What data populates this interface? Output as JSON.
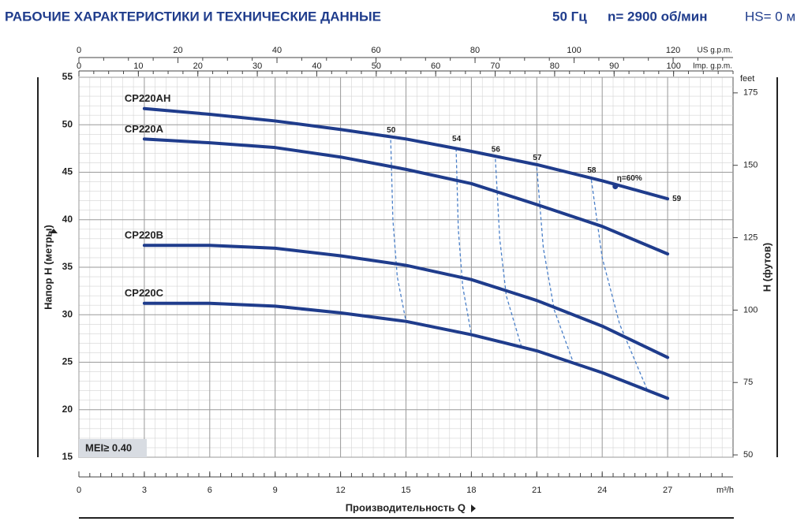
{
  "chart_data": {
    "type": "line",
    "title": "РАБОЧИЕ ХАРАКТЕРИСТИКИ И ТЕХНИЧЕСКИЕ ДАННЫЕ",
    "frequency": "50 Гц",
    "speed": "n= 2900 об/мин",
    "suction": "HS= 0 м",
    "xlabel": "Производительность Q",
    "x_unit": "m³/h",
    "ylabel": "Напор Н (метры)",
    "y2label": "H (футов)",
    "y2_unit": "feet",
    "xlim": [
      0,
      30
    ],
    "xticks": [
      0,
      3,
      6,
      9,
      12,
      15,
      18,
      21,
      24,
      27
    ],
    "ylim": [
      15,
      55
    ],
    "yticks": [
      15,
      20,
      25,
      30,
      35,
      40,
      45,
      50,
      55
    ],
    "y2lim": [
      49.2,
      180.4
    ],
    "y2ticks": [
      50,
      75,
      100,
      125,
      150,
      175
    ],
    "top_axes": [
      {
        "label": "US g.p.m.",
        "xlim": [
          0,
          132.1
        ],
        "xticks": [
          0,
          20,
          40,
          60,
          80,
          100,
          120
        ]
      },
      {
        "label": "Imp. g.p.m.",
        "xlim": [
          0,
          110
        ],
        "xticks": [
          0,
          10,
          20,
          30,
          40,
          50,
          60,
          70,
          80,
          90,
          100
        ]
      }
    ],
    "grid": true,
    "minor_grid": true,
    "mei": "MEI≥ 0.40",
    "series": [
      {
        "name": "CP220AH",
        "color": "#1f3c8c",
        "x": [
          3,
          6,
          9,
          12,
          15,
          18,
          21,
          24,
          27
        ],
        "values": [
          51.7,
          51.1,
          50.4,
          49.5,
          48.5,
          47.2,
          45.8,
          44.1,
          42.2
        ]
      },
      {
        "name": "CP220A",
        "color": "#1f3c8c",
        "x": [
          3,
          6,
          9,
          12,
          15,
          18,
          21,
          24,
          27
        ],
        "values": [
          48.5,
          48.1,
          47.6,
          46.6,
          45.3,
          43.8,
          41.6,
          39.3,
          36.4
        ]
      },
      {
        "name": "CP220B",
        "color": "#1f3c8c",
        "x": [
          3,
          6,
          9,
          12,
          15,
          18,
          21,
          24,
          27
        ],
        "values": [
          37.3,
          37.3,
          37.0,
          36.2,
          35.2,
          33.7,
          31.5,
          28.8,
          25.5
        ]
      },
      {
        "name": "CP220C",
        "color": "#1f3c8c",
        "x": [
          3,
          6,
          9,
          12,
          15,
          18,
          21,
          24,
          27
        ],
        "values": [
          31.2,
          31.2,
          30.9,
          30.2,
          29.3,
          27.9,
          26.2,
          23.9,
          21.2
        ]
      }
    ],
    "efficiency": [
      {
        "name": "50",
        "x": [
          14.3,
          14.4,
          14.6,
          15.0
        ],
        "values": [
          48.4,
          40,
          34,
          29.3
        ]
      },
      {
        "name": "54",
        "x": [
          17.3,
          17.4,
          17.6,
          18.0
        ],
        "values": [
          47.5,
          39,
          33,
          27.9
        ]
      },
      {
        "name": "56",
        "x": [
          19.1,
          19.3,
          19.6,
          20.3
        ],
        "values": [
          46.4,
          38,
          32,
          26.6
        ]
      },
      {
        "name": "57",
        "x": [
          21.0,
          21.3,
          21.8,
          22.7
        ],
        "values": [
          45.5,
          37,
          30.5,
          24.8
        ]
      },
      {
        "name": "58",
        "x": [
          23.5,
          24.0,
          24.8,
          26.1
        ],
        "values": [
          44.2,
          36,
          29,
          21.9
        ]
      },
      {
        "name": "59",
        "x": [
          27
        ],
        "values": [
          42.2
        ]
      }
    ],
    "eff_color": "#4a7fc8",
    "best_point": {
      "name": "η=60%",
      "x": 24.6,
      "value": 43.5
    }
  }
}
